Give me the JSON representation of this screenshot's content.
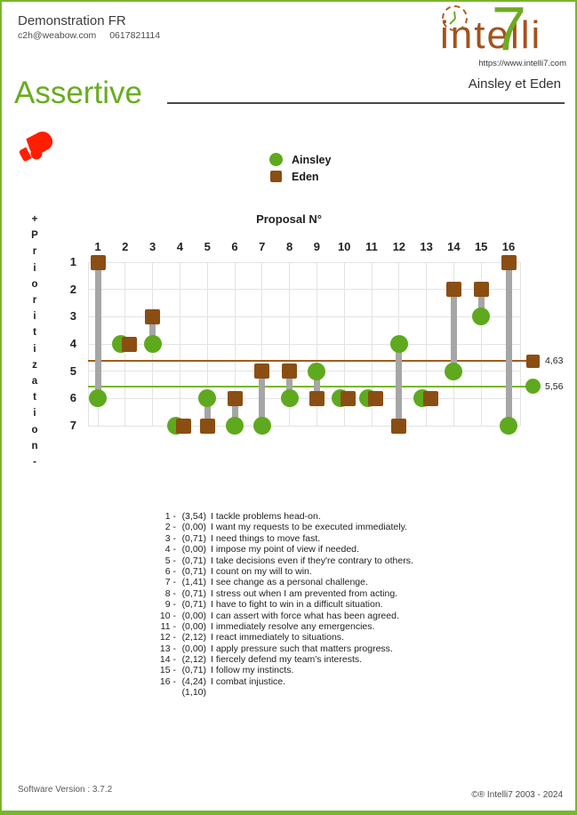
{
  "header": {
    "client_name": "Demonstration FR",
    "email": "c2h@weabow.com",
    "phone": "0617821114",
    "logo": {
      "word": "intelli",
      "seven": "7",
      "url": "https://www.intelli7.com"
    },
    "names": "Ainsley et Eden"
  },
  "title": {
    "label": "Assertive"
  },
  "legend": {
    "ainsley": "Ainsley",
    "eden": "Eden"
  },
  "colors": {
    "page_border": "#76b82a",
    "ainsley_green": "#5ea91e",
    "eden_brown": "#8a4e13",
    "eden_avg_line": "#a05e1a",
    "ainsley_avg_line": "#76b82a",
    "connector_gray": "#a6a6a6",
    "grid_gray": "#e3e3e3",
    "accent_text_green": "#68ad1f",
    "logo_brown": "#a3521c",
    "glove_red": "#ff1e00"
  },
  "chart_data": {
    "type": "scatter",
    "variant": "dumbbell",
    "title": "Proposal N°",
    "y_axis_label": "+Prioritization-",
    "x_categories": [
      "1",
      "2",
      "3",
      "4",
      "5",
      "6",
      "7",
      "8",
      "9",
      "10",
      "11",
      "12",
      "13",
      "14",
      "15",
      "16"
    ],
    "y_ticks": [
      "1",
      "2",
      "3",
      "4",
      "5",
      "6",
      "7"
    ],
    "ylim": [
      1,
      7
    ],
    "y_inverted": true,
    "grid": true,
    "series": [
      {
        "name": "Ainsley",
        "marker": "circle",
        "color": "#5ea91e",
        "values": [
          6,
          4,
          4,
          7,
          6,
          7,
          7,
          6,
          5,
          6,
          6,
          4,
          6,
          5,
          3,
          7
        ]
      },
      {
        "name": "Eden",
        "marker": "square",
        "color": "#8a4e13",
        "values": [
          1,
          4,
          3,
          7,
          7,
          6,
          5,
          5,
          6,
          6,
          6,
          7,
          6,
          2,
          2,
          1
        ]
      }
    ],
    "reference_lines": [
      {
        "label": "4,63",
        "value": 4.63,
        "line_color": "#a05e1a",
        "marker": "square",
        "marker_color": "#8a4e13",
        "name": "eden-average"
      },
      {
        "label": "5,56",
        "value": 5.56,
        "line_color": "#76b82a",
        "marker": "circle",
        "marker_color": "#5ea91e",
        "name": "ainsley-average"
      }
    ]
  },
  "proposals": [
    {
      "n": "1",
      "v": "(3,54)",
      "t": "I tackle problems head-on."
    },
    {
      "n": "2",
      "v": "(0,00)",
      "t": "I want my requests to be executed immediately."
    },
    {
      "n": "3",
      "v": "(0,71)",
      "t": "I need things to move fast."
    },
    {
      "n": "4",
      "v": "(0,00)",
      "t": "I impose my point of view if needed."
    },
    {
      "n": "5",
      "v": "(0,71)",
      "t": "I take decisions even if they're contrary to others."
    },
    {
      "n": "6",
      "v": "(0,71)",
      "t": "I count on my will to win."
    },
    {
      "n": "7",
      "v": "(1,41)",
      "t": "I see change as a personal challenge."
    },
    {
      "n": "8",
      "v": "(0,71)",
      "t": "I stress out when I am prevented from acting."
    },
    {
      "n": "9",
      "v": "(0,71)",
      "t": "I have to fight to win in a difficult situation."
    },
    {
      "n": "10",
      "v": "(0,00)",
      "t": "I can assert with force what has been agreed."
    },
    {
      "n": "11",
      "v": "(0,00)",
      "t": "I immediately resolve any emergencies."
    },
    {
      "n": "12",
      "v": "(2,12)",
      "t": "I react immediately to situations."
    },
    {
      "n": "13",
      "v": "(0,00)",
      "t": "I apply pressure such that matters progress."
    },
    {
      "n": "14",
      "v": "(2,12)",
      "t": "I fiercely defend my team's interests."
    },
    {
      "n": "15",
      "v": "(0,71)",
      "t": "I follow my instincts."
    },
    {
      "n": "16",
      "v": "(4,24)",
      "t": "I combat injustice."
    },
    {
      "n": "",
      "v": "(1,10)",
      "t": ""
    }
  ],
  "footer": {
    "left": "Software Version : 3.7.2",
    "right": "©® Intelli7 2003 - 2024"
  }
}
